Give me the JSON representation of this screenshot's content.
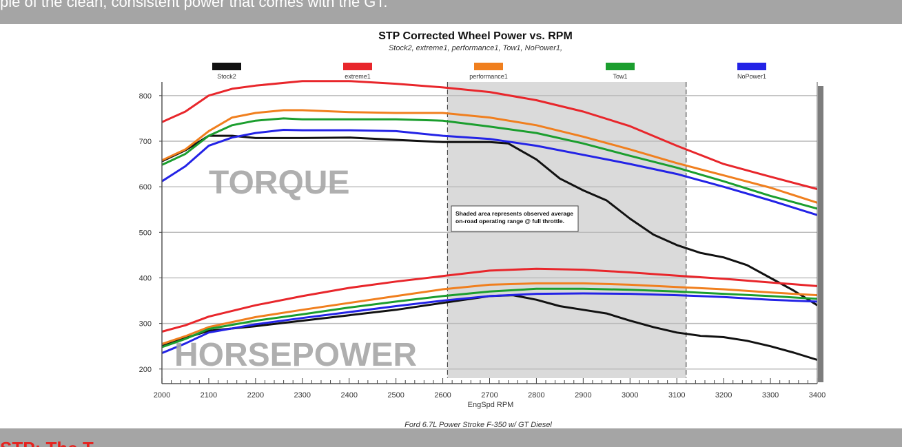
{
  "top_banner": {
    "text": "ple of the clean, consistent power that comes with the GT."
  },
  "bottom_banner": {
    "text": "STP: The T"
  },
  "chart_data": {
    "type": "line",
    "title": "STP Corrected Wheel Power vs. RPM",
    "subtitle": "Stock2, extreme1, performance1, Tow1, NoPower1,",
    "xlabel": "EngSpd  RPM",
    "footer": "Ford 6.7L Power Stroke F-350 w/ GT Diesel",
    "xlim": [
      2000,
      3400
    ],
    "ylim": [
      180,
      830
    ],
    "x_ticks": [
      2000,
      2100,
      2200,
      2300,
      2400,
      2500,
      2600,
      2700,
      2800,
      2900,
      3000,
      3100,
      3200,
      3300,
      3400
    ],
    "y_ticks": [
      200,
      300,
      400,
      500,
      600,
      700,
      800
    ],
    "grid": true,
    "legend_position": "top",
    "labels": {
      "torque": "TORQUE",
      "horsepower": "HORSEPOWER"
    },
    "annotation": {
      "line1": "Shaded area represents observed average",
      "line2": "on-road operating range @ full throttle.",
      "shade_range": [
        2610,
        3120
      ]
    },
    "series": [
      {
        "name": "Stock2",
        "color": "#111111",
        "torque": [
          [
            2000,
            656
          ],
          [
            2050,
            680
          ],
          [
            2100,
            712
          ],
          [
            2150,
            712
          ],
          [
            2200,
            707
          ],
          [
            2300,
            707
          ],
          [
            2400,
            708
          ],
          [
            2500,
            703
          ],
          [
            2600,
            698
          ],
          [
            2700,
            698
          ],
          [
            2740,
            695
          ],
          [
            2800,
            660
          ],
          [
            2850,
            618
          ],
          [
            2900,
            592
          ],
          [
            2950,
            570
          ],
          [
            3000,
            530
          ],
          [
            3050,
            495
          ],
          [
            3100,
            472
          ],
          [
            3150,
            455
          ],
          [
            3200,
            445
          ],
          [
            3250,
            428
          ],
          [
            3300,
            400
          ],
          [
            3350,
            372
          ],
          [
            3400,
            340
          ]
        ],
        "hp": [
          [
            2000,
            250
          ],
          [
            2050,
            268
          ],
          [
            2100,
            284
          ],
          [
            2200,
            294
          ],
          [
            2300,
            306
          ],
          [
            2400,
            318
          ],
          [
            2500,
            330
          ],
          [
            2600,
            345
          ],
          [
            2700,
            360
          ],
          [
            2750,
            362
          ],
          [
            2800,
            352
          ],
          [
            2850,
            338
          ],
          [
            2900,
            330
          ],
          [
            2950,
            322
          ],
          [
            3000,
            306
          ],
          [
            3050,
            292
          ],
          [
            3100,
            280
          ],
          [
            3150,
            273
          ],
          [
            3200,
            270
          ],
          [
            3250,
            262
          ],
          [
            3300,
            250
          ],
          [
            3350,
            236
          ],
          [
            3400,
            220
          ]
        ]
      },
      {
        "name": "extreme1",
        "color": "#e8262b",
        "torque": [
          [
            2000,
            742
          ],
          [
            2050,
            765
          ],
          [
            2100,
            800
          ],
          [
            2150,
            815
          ],
          [
            2200,
            822
          ],
          [
            2300,
            832
          ],
          [
            2400,
            832
          ],
          [
            2500,
            826
          ],
          [
            2600,
            818
          ],
          [
            2700,
            808
          ],
          [
            2800,
            790
          ],
          [
            2900,
            765
          ],
          [
            3000,
            733
          ],
          [
            3100,
            690
          ],
          [
            3200,
            650
          ],
          [
            3300,
            622
          ],
          [
            3400,
            595
          ]
        ],
        "hp": [
          [
            2000,
            282
          ],
          [
            2050,
            296
          ],
          [
            2100,
            315
          ],
          [
            2200,
            340
          ],
          [
            2300,
            360
          ],
          [
            2400,
            378
          ],
          [
            2500,
            392
          ],
          [
            2600,
            404
          ],
          [
            2700,
            416
          ],
          [
            2800,
            420
          ],
          [
            2900,
            418
          ],
          [
            3000,
            412
          ],
          [
            3100,
            405
          ],
          [
            3200,
            398
          ],
          [
            3300,
            390
          ],
          [
            3400,
            382
          ]
        ]
      },
      {
        "name": "performance1",
        "color": "#f07f1e",
        "torque": [
          [
            2000,
            658
          ],
          [
            2050,
            682
          ],
          [
            2100,
            722
          ],
          [
            2150,
            752
          ],
          [
            2200,
            762
          ],
          [
            2260,
            768
          ],
          [
            2300,
            768
          ],
          [
            2400,
            764
          ],
          [
            2500,
            762
          ],
          [
            2600,
            762
          ],
          [
            2700,
            752
          ],
          [
            2800,
            735
          ],
          [
            2900,
            710
          ],
          [
            3000,
            682
          ],
          [
            3100,
            652
          ],
          [
            3200,
            625
          ],
          [
            3300,
            598
          ],
          [
            3400,
            565
          ]
        ],
        "hp": [
          [
            2000,
            255
          ],
          [
            2050,
            272
          ],
          [
            2100,
            292
          ],
          [
            2200,
            314
          ],
          [
            2300,
            330
          ],
          [
            2400,
            345
          ],
          [
            2500,
            360
          ],
          [
            2600,
            375
          ],
          [
            2700,
            385
          ],
          [
            2800,
            388
          ],
          [
            2900,
            388
          ],
          [
            3000,
            385
          ],
          [
            3100,
            380
          ],
          [
            3200,
            375
          ],
          [
            3300,
            368
          ],
          [
            3400,
            362
          ]
        ]
      },
      {
        "name": "Tow1",
        "color": "#1b9e2e",
        "torque": [
          [
            2000,
            648
          ],
          [
            2050,
            672
          ],
          [
            2100,
            712
          ],
          [
            2150,
            735
          ],
          [
            2200,
            745
          ],
          [
            2260,
            750
          ],
          [
            2300,
            748
          ],
          [
            2400,
            748
          ],
          [
            2500,
            748
          ],
          [
            2600,
            745
          ],
          [
            2700,
            732
          ],
          [
            2800,
            718
          ],
          [
            2900,
            695
          ],
          [
            3000,
            668
          ],
          [
            3100,
            642
          ],
          [
            3200,
            612
          ],
          [
            3300,
            580
          ],
          [
            3400,
            552
          ]
        ],
        "hp": [
          [
            2000,
            248
          ],
          [
            2050,
            266
          ],
          [
            2100,
            288
          ],
          [
            2200,
            306
          ],
          [
            2300,
            320
          ],
          [
            2400,
            335
          ],
          [
            2500,
            348
          ],
          [
            2600,
            360
          ],
          [
            2700,
            370
          ],
          [
            2800,
            376
          ],
          [
            2900,
            376
          ],
          [
            3000,
            374
          ],
          [
            3100,
            370
          ],
          [
            3200,
            365
          ],
          [
            3300,
            360
          ],
          [
            3400,
            354
          ]
        ]
      },
      {
        "name": "NoPower1",
        "color": "#2323e6",
        "torque": [
          [
            2000,
            612
          ],
          [
            2050,
            645
          ],
          [
            2100,
            690
          ],
          [
            2150,
            708
          ],
          [
            2200,
            718
          ],
          [
            2260,
            725
          ],
          [
            2300,
            724
          ],
          [
            2400,
            724
          ],
          [
            2500,
            722
          ],
          [
            2600,
            712
          ],
          [
            2700,
            705
          ],
          [
            2800,
            690
          ],
          [
            2900,
            670
          ],
          [
            3000,
            650
          ],
          [
            3100,
            628
          ],
          [
            3200,
            600
          ],
          [
            3300,
            570
          ],
          [
            3400,
            538
          ]
        ],
        "hp": [
          [
            2000,
            235
          ],
          [
            2050,
            256
          ],
          [
            2100,
            280
          ],
          [
            2200,
            298
          ],
          [
            2300,
            312
          ],
          [
            2400,
            325
          ],
          [
            2500,
            338
          ],
          [
            2600,
            350
          ],
          [
            2700,
            360
          ],
          [
            2800,
            365
          ],
          [
            2900,
            366
          ],
          [
            3000,
            365
          ],
          [
            3100,
            362
          ],
          [
            3200,
            358
          ],
          [
            3300,
            352
          ],
          [
            3400,
            348
          ]
        ]
      }
    ]
  }
}
